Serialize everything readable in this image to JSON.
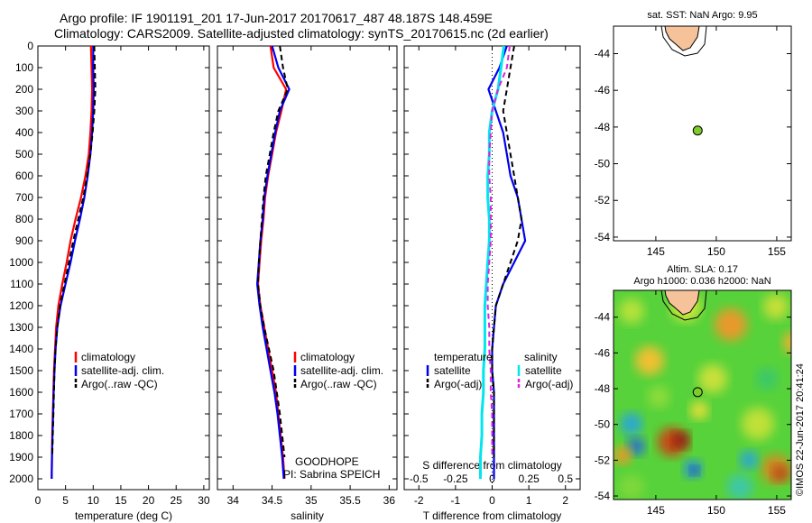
{
  "header": {
    "line1": "Argo profile: IF 1901191_201 17-Jun-2017 20170617_487 48.187S 148.459E",
    "line2": "Climatology: CARS2009. Satellite-adjusted climatology: synTS_20170615.nc (2d earlier)"
  },
  "colors": {
    "climatology": "#ff0000",
    "satellite": "#0000ee",
    "argo": "#000000",
    "sat_salinity": "#00e5ee",
    "argo_salinity": "#dd22dd",
    "land": "#f5c29a",
    "float": "#7ccd2a"
  },
  "chart_data": [
    {
      "type": "line",
      "panel": "temperature",
      "xlabel": "temperature (deg C)",
      "ylabel": "",
      "xlim": [
        0,
        31
      ],
      "ylim": [
        2050,
        0
      ],
      "y_reversed": true,
      "xticks": [
        0,
        5,
        10,
        15,
        20,
        25,
        30
      ],
      "yticks": [
        0,
        100,
        200,
        300,
        400,
        500,
        600,
        700,
        800,
        900,
        1000,
        1100,
        1200,
        1300,
        1400,
        1500,
        1600,
        1700,
        1800,
        1900,
        2000
      ],
      "legend": [
        "climatology",
        "satellite-adj. clim.",
        "Argo(..raw -QC)"
      ],
      "series": [
        {
          "name": "climatology",
          "x": [
            9.6,
            9.7,
            9.8,
            9.7,
            9.5,
            9.2,
            8.6,
            7.8,
            6.8,
            5.9,
            5.2,
            4.4,
            3.7,
            3.3,
            3.1,
            2.9,
            2.8,
            2.7,
            2.6,
            2.55,
            2.5
          ],
          "y": [
            0,
            100,
            200,
            300,
            400,
            500,
            600,
            700,
            800,
            900,
            1000,
            1100,
            1200,
            1300,
            1400,
            1500,
            1600,
            1700,
            1800,
            1900,
            2000
          ]
        },
        {
          "name": "satellite-adj. clim.",
          "x": [
            10.0,
            10.0,
            10.1,
            10.0,
            9.8,
            9.5,
            9.0,
            8.4,
            7.6,
            6.7,
            5.9,
            5.0,
            4.1,
            3.5,
            3.2,
            3.0,
            2.85,
            2.75,
            2.65,
            2.55,
            2.5
          ],
          "y": [
            0,
            100,
            200,
            300,
            400,
            500,
            600,
            700,
            800,
            900,
            1000,
            1100,
            1200,
            1300,
            1400,
            1500,
            1600,
            1700,
            1800,
            1900,
            2000
          ]
        },
        {
          "name": "Argo(..raw -QC)",
          "x": [
            10.2,
            10.3,
            10.4,
            10.2,
            9.9,
            9.5,
            8.9,
            8.2,
            7.3,
            6.4,
            5.6,
            4.8,
            4.0,
            3.5,
            3.2,
            3.0,
            2.9,
            2.8,
            2.7,
            2.6
          ],
          "y": [
            0,
            100,
            200,
            300,
            400,
            500,
            600,
            700,
            800,
            900,
            1000,
            1100,
            1200,
            1300,
            1400,
            1500,
            1600,
            1700,
            1800,
            1900
          ]
        }
      ]
    },
    {
      "type": "line",
      "panel": "salinity",
      "xlabel": "salinity",
      "ylabel": "",
      "xlim": [
        33.8,
        36.1
      ],
      "ylim": [
        2050,
        0
      ],
      "y_reversed": true,
      "xticks": [
        34,
        34.5,
        35,
        35.5,
        36
      ],
      "legend": [
        "climatology",
        "satellite-adj. clim.",
        "Argo(..raw -QC)"
      ],
      "annotation": [
        "GOODHOPE",
        "PI: Sabrina SPEICH"
      ],
      "series": [
        {
          "name": "climatology",
          "x": [
            34.48,
            34.52,
            34.68,
            34.62,
            34.55,
            34.5,
            34.45,
            34.41,
            34.39,
            34.36,
            34.34,
            34.32,
            34.35,
            34.4,
            34.45,
            34.5,
            34.55,
            34.58,
            34.61,
            34.64,
            34.66
          ],
          "y": [
            0,
            100,
            200,
            300,
            400,
            500,
            600,
            700,
            800,
            900,
            1000,
            1100,
            1200,
            1300,
            1400,
            1500,
            1600,
            1700,
            1800,
            1900,
            2000
          ]
        },
        {
          "name": "satellite-adj. clim.",
          "x": [
            34.5,
            34.58,
            34.72,
            34.6,
            34.54,
            34.49,
            34.44,
            34.4,
            34.38,
            34.35,
            34.33,
            34.31,
            34.34,
            34.38,
            34.43,
            34.48,
            34.53,
            34.57,
            34.6,
            34.63,
            34.65
          ],
          "y": [
            0,
            100,
            200,
            300,
            400,
            500,
            600,
            700,
            800,
            900,
            1000,
            1100,
            1200,
            1300,
            1400,
            1500,
            1600,
            1700,
            1800,
            1900,
            2000
          ]
        },
        {
          "name": "Argo(..raw -QC)",
          "x": [
            34.6,
            34.64,
            34.7,
            34.58,
            34.52,
            34.47,
            34.42,
            34.39,
            34.37,
            34.35,
            34.33,
            34.32,
            34.35,
            34.4,
            34.46,
            34.52,
            34.56,
            34.6,
            34.63,
            34.66
          ],
          "y": [
            0,
            100,
            200,
            300,
            400,
            500,
            600,
            700,
            800,
            900,
            1000,
            1100,
            1200,
            1300,
            1400,
            1500,
            1600,
            1700,
            1800,
            1900
          ]
        }
      ]
    },
    {
      "type": "line",
      "panel": "difference",
      "xlabel": "T difference from climatology",
      "xlabel_top": "S difference from climatology",
      "xlim": [
        -2.4,
        2.4
      ],
      "ylim": [
        2050,
        0
      ],
      "y_reversed": true,
      "xticks": [
        -2,
        -1,
        0,
        1,
        2
      ],
      "xticks_s": [
        "-0.5",
        "-0.25",
        "0",
        "0.25",
        "0.5"
      ],
      "legend_titles": [
        "temperature",
        "salinity"
      ],
      "legend": [
        "satellite",
        "Argo(-adj)",
        "satellite",
        "Argo(-adj)"
      ],
      "series": [
        {
          "name": "T satellite",
          "x": [
            0.4,
            0.2,
            -0.1,
            0.1,
            0.3,
            0.4,
            0.5,
            0.7,
            0.8,
            0.9,
            0.6,
            0.3,
            0.1,
            0.05,
            0.0,
            0.0,
            0.05,
            0.05,
            0.05,
            0.05,
            0.05
          ],
          "y": [
            0,
            100,
            200,
            300,
            400,
            500,
            600,
            700,
            800,
            900,
            1000,
            1100,
            1200,
            1300,
            1400,
            1500,
            1600,
            1700,
            1800,
            1900,
            2000
          ]
        },
        {
          "name": "T Argo(-adj)",
          "x": [
            0.6,
            0.5,
            0.4,
            0.3,
            0.4,
            0.5,
            0.6,
            0.7,
            0.8,
            0.7,
            0.5,
            0.3,
            0.1,
            0.05,
            0.0,
            0.0,
            0.05,
            0.05,
            0.05,
            0.05
          ],
          "y": [
            0,
            100,
            200,
            300,
            400,
            500,
            600,
            700,
            800,
            900,
            1000,
            1100,
            1200,
            1300,
            1400,
            1500,
            1600,
            1700,
            1800,
            1900
          ]
        },
        {
          "name": "S satellite",
          "x": [
            0.08,
            0.06,
            0.04,
            0.0,
            -0.02,
            -0.02,
            -0.03,
            -0.03,
            -0.02,
            -0.02,
            -0.03,
            -0.04,
            -0.05,
            -0.05,
            -0.05,
            -0.06,
            -0.06,
            -0.07,
            -0.07,
            -0.08,
            -0.08
          ],
          "y": [
            0,
            100,
            200,
            300,
            400,
            500,
            600,
            700,
            800,
            900,
            1000,
            1100,
            1200,
            1300,
            1400,
            1500,
            1600,
            1700,
            1800,
            1900,
            2000
          ]
        },
        {
          "name": "S Argo(-adj)",
          "x": [
            0.12,
            0.1,
            0.04,
            0.0,
            -0.01,
            -0.02,
            -0.02,
            -0.01,
            -0.01,
            -0.01,
            -0.02,
            -0.03,
            -0.03,
            -0.02,
            -0.02,
            -0.01,
            -0.01,
            0.0,
            0.0,
            0.0
          ],
          "y": [
            0,
            100,
            200,
            300,
            400,
            500,
            600,
            700,
            800,
            900,
            1000,
            1100,
            1200,
            1300,
            1400,
            1500,
            1600,
            1700,
            1800,
            1900
          ]
        }
      ]
    },
    {
      "type": "scatter",
      "panel": "sst_map",
      "title": "sat. SST: NaN Argo: 9.95",
      "xlim": [
        141.5,
        156.2
      ],
      "ylim": [
        -54.2,
        -42.5
      ],
      "xticks": [
        145,
        150,
        155
      ],
      "yticks": [
        -44,
        -46,
        -48,
        -50,
        -52,
        -54
      ],
      "points": [
        {
          "x": 148.46,
          "y": -48.19
        }
      ]
    },
    {
      "type": "heatmap",
      "panel": "sla_map",
      "title": [
        "Altim. SLA: 0.17",
        "Argo h1000: 0.036 h2000: NaN"
      ],
      "xlim": [
        141.5,
        156.2
      ],
      "ylim": [
        -54.2,
        -42.5
      ],
      "xticks": [
        145,
        150,
        155
      ],
      "yticks": [
        -44,
        -46,
        -48,
        -50,
        -52,
        -54
      ],
      "points": [
        {
          "x": 148.46,
          "y": -48.19
        }
      ]
    }
  ],
  "stamp": "©IMOS 22-Jun-2017 20:41:24"
}
